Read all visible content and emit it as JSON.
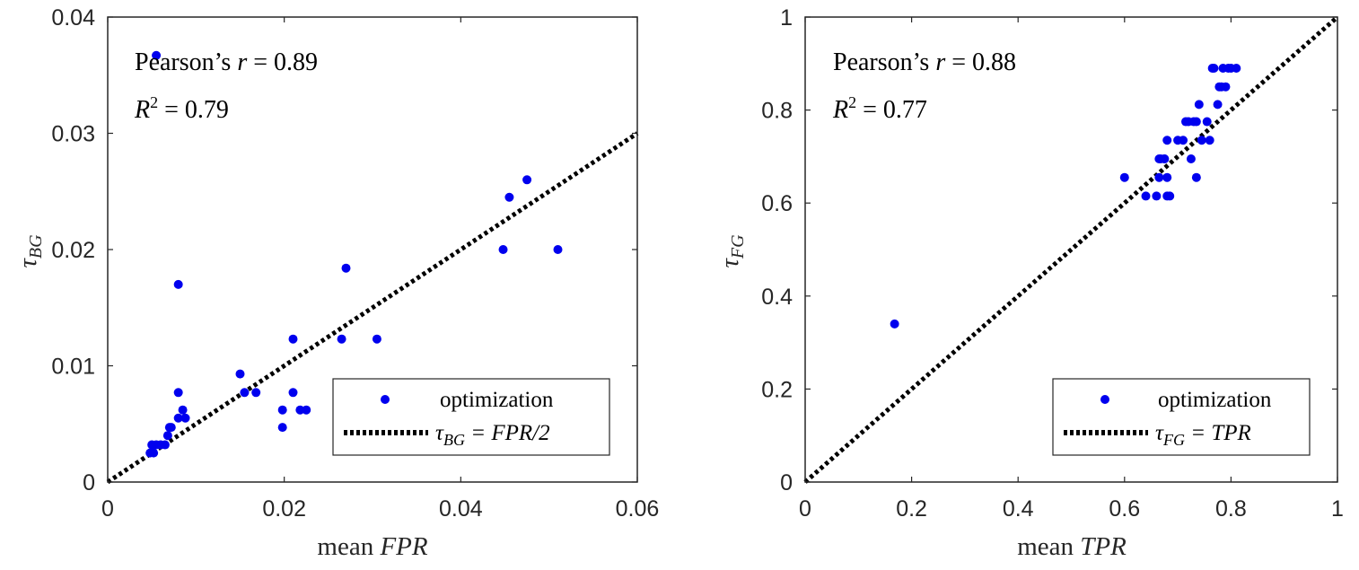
{
  "chart_data": [
    {
      "type": "scatter",
      "xlabel_prefix": "mean ",
      "xlabel_var": "FPR",
      "ylabel_var": "τ",
      "ylabel_sub": "BG",
      "xlim": [
        0,
        0.06
      ],
      "ylim": [
        0,
        0.04
      ],
      "xticks": [
        0,
        0.02,
        0.04,
        0.06
      ],
      "xtick_labels": [
        "0",
        "0.02",
        "0.04",
        "0.06"
      ],
      "yticks": [
        0,
        0.01,
        0.02,
        0.03,
        0.04
      ],
      "ytick_labels": [
        "0",
        "0.01",
        "0.02",
        "0.03",
        "0.04"
      ],
      "annotations": {
        "pearson_prefix": "Pearson’s ",
        "pearson_var": "r",
        "pearson_eq": " = 0.89",
        "r2_var": "R",
        "r2_sup": "2",
        "r2_eq": " = 0.79"
      },
      "legend": {
        "location": "bottom-right",
        "scatter_label": "optimization",
        "line_label_var": "τ",
        "line_label_sub": "BG",
        "line_label_eq": " = FPR/2"
      },
      "line": {
        "style": "dotted",
        "x": [
          0,
          0.06
        ],
        "y": [
          0,
          0.03
        ]
      },
      "point_color": "#0000ee",
      "series": [
        {
          "name": "optimization",
          "x": [
            0.0055,
            0.0475,
            0.0455,
            0.0448,
            0.051,
            0.008,
            0.027,
            0.021,
            0.0265,
            0.0305,
            0.015,
            0.0155,
            0.0168,
            0.021,
            0.008,
            0.0198,
            0.0225,
            0.0218,
            0.0198,
            0.0085,
            0.008,
            0.0088,
            0.007,
            0.0072,
            0.0068,
            0.006,
            0.0055,
            0.005,
            0.0065,
            0.0048,
            0.0052
          ],
          "y": [
            0.0367,
            0.026,
            0.0245,
            0.02,
            0.02,
            0.017,
            0.0184,
            0.0123,
            0.0123,
            0.0123,
            0.0093,
            0.0077,
            0.0077,
            0.0077,
            0.0077,
            0.0062,
            0.0062,
            0.0062,
            0.0047,
            0.0062,
            0.0055,
            0.0055,
            0.0047,
            0.0047,
            0.004,
            0.0032,
            0.0032,
            0.0032,
            0.0032,
            0.0025,
            0.0025
          ]
        }
      ]
    },
    {
      "type": "scatter",
      "xlabel_prefix": "mean ",
      "xlabel_var": "TPR",
      "ylabel_var": "τ",
      "ylabel_sub": "FG",
      "xlim": [
        0,
        1
      ],
      "ylim": [
        0,
        1
      ],
      "xticks": [
        0,
        0.2,
        0.4,
        0.6,
        0.8,
        1
      ],
      "xtick_labels": [
        "0",
        "0.2",
        "0.4",
        "0.6",
        "0.8",
        "1"
      ],
      "yticks": [
        0,
        0.2,
        0.4,
        0.6,
        0.8,
        1
      ],
      "ytick_labels": [
        "0",
        "0.2",
        "0.4",
        "0.6",
        "0.8",
        "1"
      ],
      "annotations": {
        "pearson_prefix": "Pearson’s ",
        "pearson_var": "r",
        "pearson_eq": " = 0.88",
        "r2_var": "R",
        "r2_sup": "2",
        "r2_eq": " = 0.77"
      },
      "legend": {
        "location": "bottom-right",
        "scatter_label": "optimization",
        "line_label_var": "τ",
        "line_label_sub": "FG",
        "line_label_eq": " = TPR"
      },
      "line": {
        "style": "dotted",
        "x": [
          0,
          1
        ],
        "y": [
          0,
          1
        ]
      },
      "point_color": "#0000ee",
      "series": [
        {
          "name": "optimization",
          "x": [
            0.168,
            0.6,
            0.64,
            0.66,
            0.665,
            0.668,
            0.675,
            0.68,
            0.68,
            0.665,
            0.675,
            0.68,
            0.685,
            0.7,
            0.71,
            0.715,
            0.72,
            0.725,
            0.73,
            0.735,
            0.735,
            0.74,
            0.745,
            0.755,
            0.76,
            0.765,
            0.768,
            0.775,
            0.778,
            0.782,
            0.785,
            0.79,
            0.795,
            0.8,
            0.81
          ],
          "y": [
            0.34,
            0.655,
            0.615,
            0.615,
            0.655,
            0.695,
            0.695,
            0.615,
            0.655,
            0.695,
            0.695,
            0.735,
            0.615,
            0.735,
            0.735,
            0.775,
            0.775,
            0.695,
            0.775,
            0.655,
            0.775,
            0.812,
            0.735,
            0.775,
            0.735,
            0.89,
            0.89,
            0.812,
            0.85,
            0.85,
            0.89,
            0.85,
            0.89,
            0.89,
            0.89
          ]
        }
      ]
    }
  ]
}
